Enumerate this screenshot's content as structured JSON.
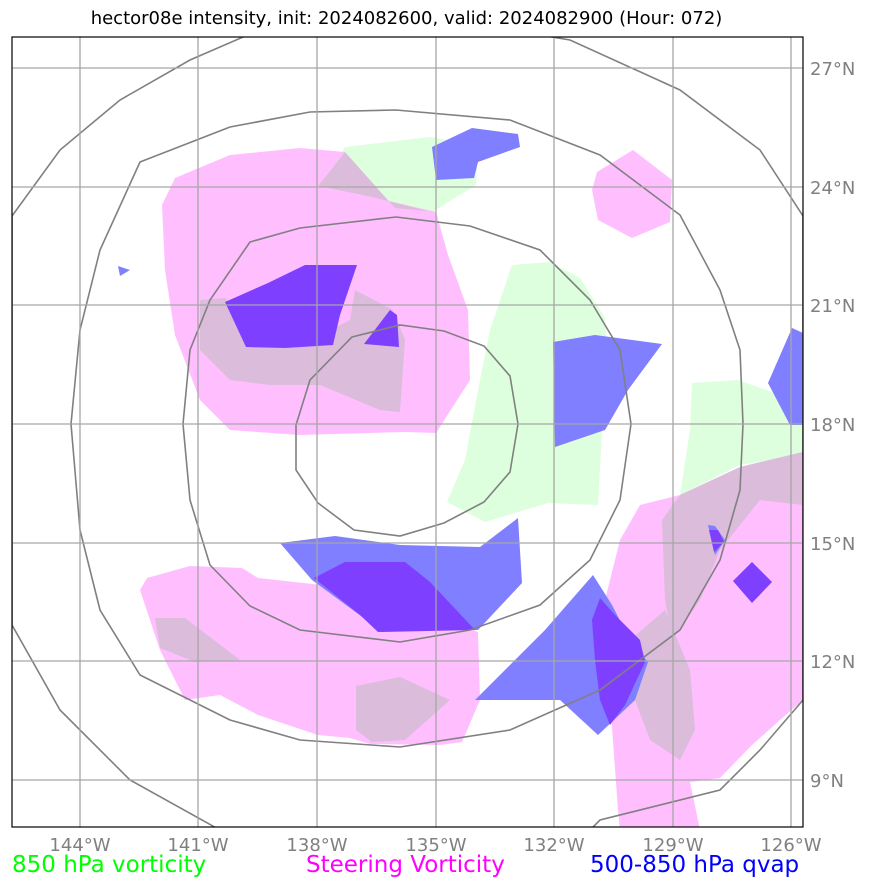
{
  "title": "hector08e intensity, init: 2024082600, valid: 2024082900 (Hour: 072)",
  "axes": {
    "lon_labels": [
      "144°W",
      "141°W",
      "138°W",
      "135°W",
      "132°W",
      "129°W",
      "126°W"
    ],
    "lat_labels": [
      "27°N",
      "24°N",
      "21°N",
      "18°N",
      "15°N",
      "12°N",
      "9°N"
    ]
  },
  "legend": {
    "vort850": "850 hPa vorticity",
    "steering": "Steering Vorticity",
    "qvap": "500-850 hPa qvap"
  },
  "colors": {
    "vort850": "#00ff00",
    "steering": "#ff00ff",
    "qvap": "#0000ff",
    "fill_vort850": "#ddffdd",
    "fill_steering": "#ffbfff",
    "fill_qvap": "#7f7fff",
    "fill_qvap_strong": "#7f3fff",
    "grid": "#808080"
  }
}
